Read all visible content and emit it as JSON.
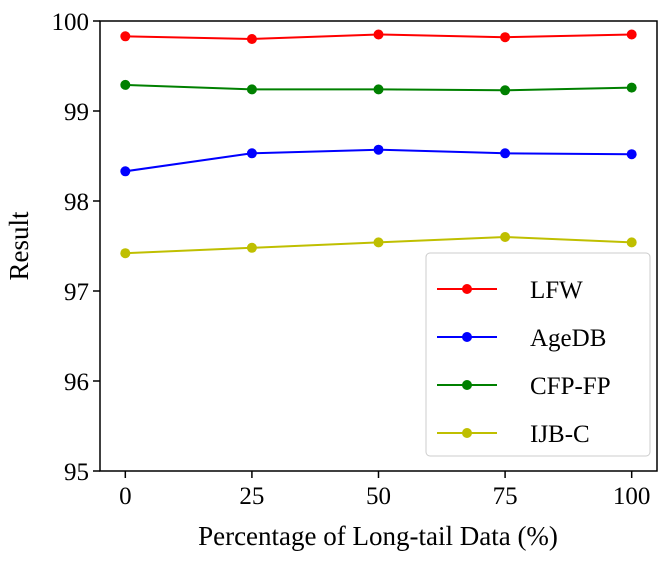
{
  "chart_data": {
    "type": "line",
    "xlabel": "Percentage of Long-tail Data (%)",
    "ylabel": "Result",
    "x": [
      0,
      25,
      50,
      75,
      100
    ],
    "xlim": [
      -5,
      105
    ],
    "ylim": [
      95,
      100
    ],
    "xticks": [
      "0",
      "25",
      "50",
      "75",
      "100"
    ],
    "yticks": [
      "95",
      "96",
      "97",
      "98",
      "99",
      "100"
    ],
    "grid": false,
    "legend_position": "lower-right",
    "series": [
      {
        "name": "LFW",
        "color": "#ff0000",
        "values": [
          99.83,
          99.8,
          99.85,
          99.82,
          99.85
        ]
      },
      {
        "name": "AgeDB",
        "color": "#0000ff",
        "values": [
          98.33,
          98.53,
          98.57,
          98.53,
          98.52
        ]
      },
      {
        "name": "CFP-FP",
        "color": "#008000",
        "values": [
          99.29,
          99.24,
          99.24,
          99.23,
          99.26
        ]
      },
      {
        "name": "IJB-C",
        "color": "#bfbf00",
        "values": [
          97.42,
          97.48,
          97.54,
          97.6,
          97.54
        ]
      }
    ]
  }
}
